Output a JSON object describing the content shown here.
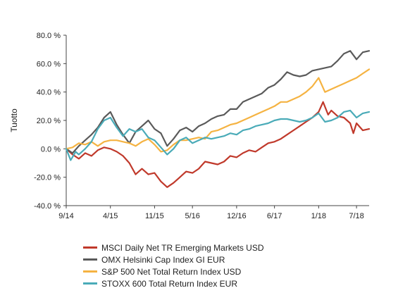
{
  "chart_data": {
    "type": "line",
    "ylabel": "Tuotto",
    "xlabel": "",
    "title": "",
    "y_unit_suffix": " %",
    "ylim": [
      -40,
      80
    ],
    "y_ticks": [
      -40,
      -20,
      0,
      20,
      40,
      60,
      80
    ],
    "y_tick_labels": [
      "-40.0 %",
      "-20.0 %",
      "0.0 %",
      "20.0 %",
      "40.0 %",
      "60.0 %",
      "80.0 %"
    ],
    "x_tick_labels": [
      "9/14",
      "4/15",
      "11/15",
      "5/16",
      "12/16",
      "6/17",
      "1/18",
      "7/18"
    ],
    "x_ticks_months": [
      0,
      7,
      14,
      20,
      27,
      33,
      40,
      46
    ],
    "xlim_months": [
      0,
      48
    ],
    "grid": false,
    "legend_position": "bottom",
    "series": [
      {
        "name": "MSCI Daily Net TR Emerging Markets USD",
        "color": "#c0392b",
        "points": [
          [
            0,
            0
          ],
          [
            1,
            -4
          ],
          [
            2,
            -7
          ],
          [
            3,
            -3
          ],
          [
            4,
            -5
          ],
          [
            5,
            -1
          ],
          [
            6,
            1
          ],
          [
            7,
            0
          ],
          [
            8,
            -2
          ],
          [
            9,
            -5
          ],
          [
            10,
            -10
          ],
          [
            11,
            -18
          ],
          [
            12,
            -14
          ],
          [
            13,
            -18
          ],
          [
            14,
            -17
          ],
          [
            15,
            -23
          ],
          [
            16,
            -27
          ],
          [
            17,
            -24
          ],
          [
            18,
            -20
          ],
          [
            19,
            -16
          ],
          [
            20,
            -17
          ],
          [
            21,
            -14
          ],
          [
            22,
            -9
          ],
          [
            23,
            -10
          ],
          [
            24,
            -11
          ],
          [
            25,
            -9
          ],
          [
            26,
            -5
          ],
          [
            27,
            -6
          ],
          [
            28,
            -3
          ],
          [
            29,
            -1
          ],
          [
            30,
            -2
          ],
          [
            31,
            1
          ],
          [
            32,
            4
          ],
          [
            33,
            5
          ],
          [
            34,
            7
          ],
          [
            35,
            10
          ],
          [
            36,
            13
          ],
          [
            37,
            16
          ],
          [
            38,
            19
          ],
          [
            39,
            22
          ],
          [
            40,
            26
          ],
          [
            40.7,
            33
          ],
          [
            41.5,
            24
          ],
          [
            42,
            27
          ],
          [
            43,
            23
          ],
          [
            44,
            22
          ],
          [
            45,
            18
          ],
          [
            45.5,
            11
          ],
          [
            46,
            18
          ],
          [
            47,
            13
          ],
          [
            48,
            14
          ]
        ]
      },
      {
        "name": "OMX Helsinki Cap Index GI EUR",
        "color": "#5a5a5a",
        "points": [
          [
            0,
            0
          ],
          [
            1,
            -3
          ],
          [
            2,
            2
          ],
          [
            3,
            6
          ],
          [
            4,
            10
          ],
          [
            5,
            15
          ],
          [
            6,
            22
          ],
          [
            7,
            26
          ],
          [
            8,
            17
          ],
          [
            9,
            10
          ],
          [
            10,
            4
          ],
          [
            11,
            12
          ],
          [
            12,
            16
          ],
          [
            13,
            20
          ],
          [
            14,
            14
          ],
          [
            15,
            11
          ],
          [
            16,
            2
          ],
          [
            17,
            7
          ],
          [
            18,
            13
          ],
          [
            19,
            15
          ],
          [
            20,
            12
          ],
          [
            21,
            16
          ],
          [
            22,
            18
          ],
          [
            23,
            21
          ],
          [
            24,
            23
          ],
          [
            25,
            24
          ],
          [
            26,
            28
          ],
          [
            27,
            28
          ],
          [
            28,
            33
          ],
          [
            29,
            35
          ],
          [
            30,
            37
          ],
          [
            31,
            39
          ],
          [
            32,
            43
          ],
          [
            33,
            45
          ],
          [
            34,
            49
          ],
          [
            35,
            54
          ],
          [
            36,
            52
          ],
          [
            37,
            51
          ],
          [
            38,
            52
          ],
          [
            39,
            55
          ],
          [
            40,
            56
          ],
          [
            41,
            57
          ],
          [
            42,
            58
          ],
          [
            43,
            62
          ],
          [
            44,
            67
          ],
          [
            45,
            69
          ],
          [
            46,
            63
          ],
          [
            47,
            68
          ],
          [
            48,
            69
          ]
        ]
      },
      {
        "name": "S&P 500 Net Total Return Index USD",
        "color": "#f5b342",
        "points": [
          [
            0,
            0
          ],
          [
            1,
            1
          ],
          [
            2,
            4
          ],
          [
            3,
            3
          ],
          [
            4,
            5
          ],
          [
            5,
            2
          ],
          [
            6,
            5
          ],
          [
            7,
            6
          ],
          [
            8,
            6
          ],
          [
            9,
            5
          ],
          [
            10,
            4
          ],
          [
            11,
            2
          ],
          [
            12,
            5
          ],
          [
            13,
            7
          ],
          [
            14,
            3
          ],
          [
            15,
            -2
          ],
          [
            16,
            -1
          ],
          [
            17,
            3
          ],
          [
            18,
            6
          ],
          [
            19,
            6
          ],
          [
            20,
            7
          ],
          [
            21,
            8
          ],
          [
            22,
            7
          ],
          [
            23,
            12
          ],
          [
            24,
            13
          ],
          [
            25,
            15
          ],
          [
            26,
            17
          ],
          [
            27,
            18
          ],
          [
            28,
            20
          ],
          [
            29,
            22
          ],
          [
            30,
            24
          ],
          [
            31,
            26
          ],
          [
            32,
            28
          ],
          [
            33,
            30
          ],
          [
            34,
            33
          ],
          [
            35,
            33
          ],
          [
            36,
            35
          ],
          [
            37,
            37
          ],
          [
            38,
            40
          ],
          [
            39,
            44
          ],
          [
            40,
            50
          ],
          [
            41,
            40
          ],
          [
            42,
            42
          ],
          [
            43,
            44
          ],
          [
            44,
            46
          ],
          [
            45,
            48
          ],
          [
            46,
            50
          ],
          [
            47,
            53
          ],
          [
            48,
            56
          ]
        ]
      },
      {
        "name": "STOXX 600 Total Return Index EUR",
        "color": "#4aabb8",
        "points": [
          [
            0,
            0
          ],
          [
            0.7,
            -8
          ],
          [
            1.5,
            -2
          ],
          [
            2,
            -4
          ],
          [
            3,
            0
          ],
          [
            4,
            5
          ],
          [
            5,
            14
          ],
          [
            6,
            20
          ],
          [
            7,
            22
          ],
          [
            8,
            15
          ],
          [
            9,
            9
          ],
          [
            10,
            14
          ],
          [
            11,
            12
          ],
          [
            12,
            14
          ],
          [
            13,
            8
          ],
          [
            14,
            6
          ],
          [
            15,
            1
          ],
          [
            16,
            -4
          ],
          [
            17,
            0
          ],
          [
            18,
            6
          ],
          [
            19,
            8
          ],
          [
            20,
            4
          ],
          [
            21,
            6
          ],
          [
            22,
            8
          ],
          [
            23,
            7
          ],
          [
            24,
            8
          ],
          [
            25,
            9
          ],
          [
            26,
            11
          ],
          [
            27,
            10
          ],
          [
            28,
            13
          ],
          [
            29,
            14
          ],
          [
            30,
            16
          ],
          [
            31,
            17
          ],
          [
            32,
            18
          ],
          [
            33,
            20
          ],
          [
            34,
            21
          ],
          [
            35,
            21
          ],
          [
            36,
            20
          ],
          [
            37,
            19
          ],
          [
            38,
            20
          ],
          [
            39,
            22
          ],
          [
            40,
            25
          ],
          [
            41,
            19
          ],
          [
            42,
            20
          ],
          [
            43,
            22
          ],
          [
            44,
            26
          ],
          [
            45,
            27
          ],
          [
            46,
            22
          ],
          [
            47,
            25
          ],
          [
            48,
            26
          ]
        ]
      }
    ]
  }
}
